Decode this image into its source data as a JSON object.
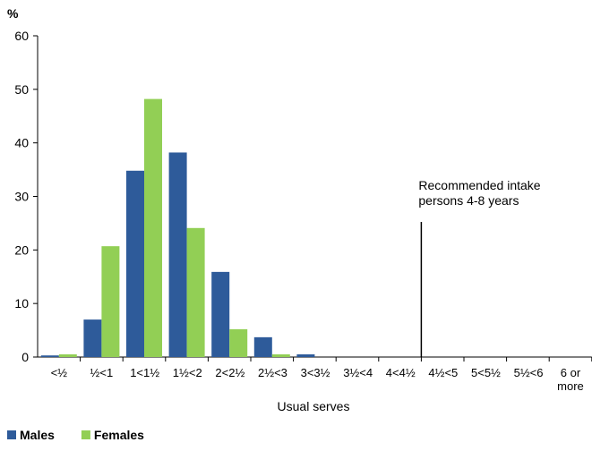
{
  "chart_data": {
    "type": "bar",
    "y_label": "%",
    "x_label": "Usual serves",
    "categories": [
      "<½",
      "½<1",
      "1<1½",
      "1½<2",
      "2<2½",
      "2½<3",
      "3<3½",
      "3½<4",
      "4<4½",
      "4½<5",
      "5<5½",
      "5½<6",
      "6 or more"
    ],
    "series": [
      {
        "name": "Males",
        "color": "#2e5b9a",
        "values": [
          0.3,
          7,
          34.8,
          38.2,
          15.9,
          3.7,
          0.5,
          0,
          0,
          0,
          0,
          0,
          0
        ]
      },
      {
        "name": "Females",
        "color": "#92cf55",
        "values": [
          0.5,
          20.7,
          48.2,
          24.1,
          5.2,
          0.5,
          0,
          0,
          0,
          0,
          0,
          0,
          0
        ]
      }
    ],
    "ylim": [
      0,
      60
    ],
    "yticks": [
      0,
      10,
      20,
      30,
      40,
      50,
      60
    ],
    "annotation": [
      "Recommended intake",
      "persons 4-8 years"
    ],
    "legend": "bottom-left"
  }
}
